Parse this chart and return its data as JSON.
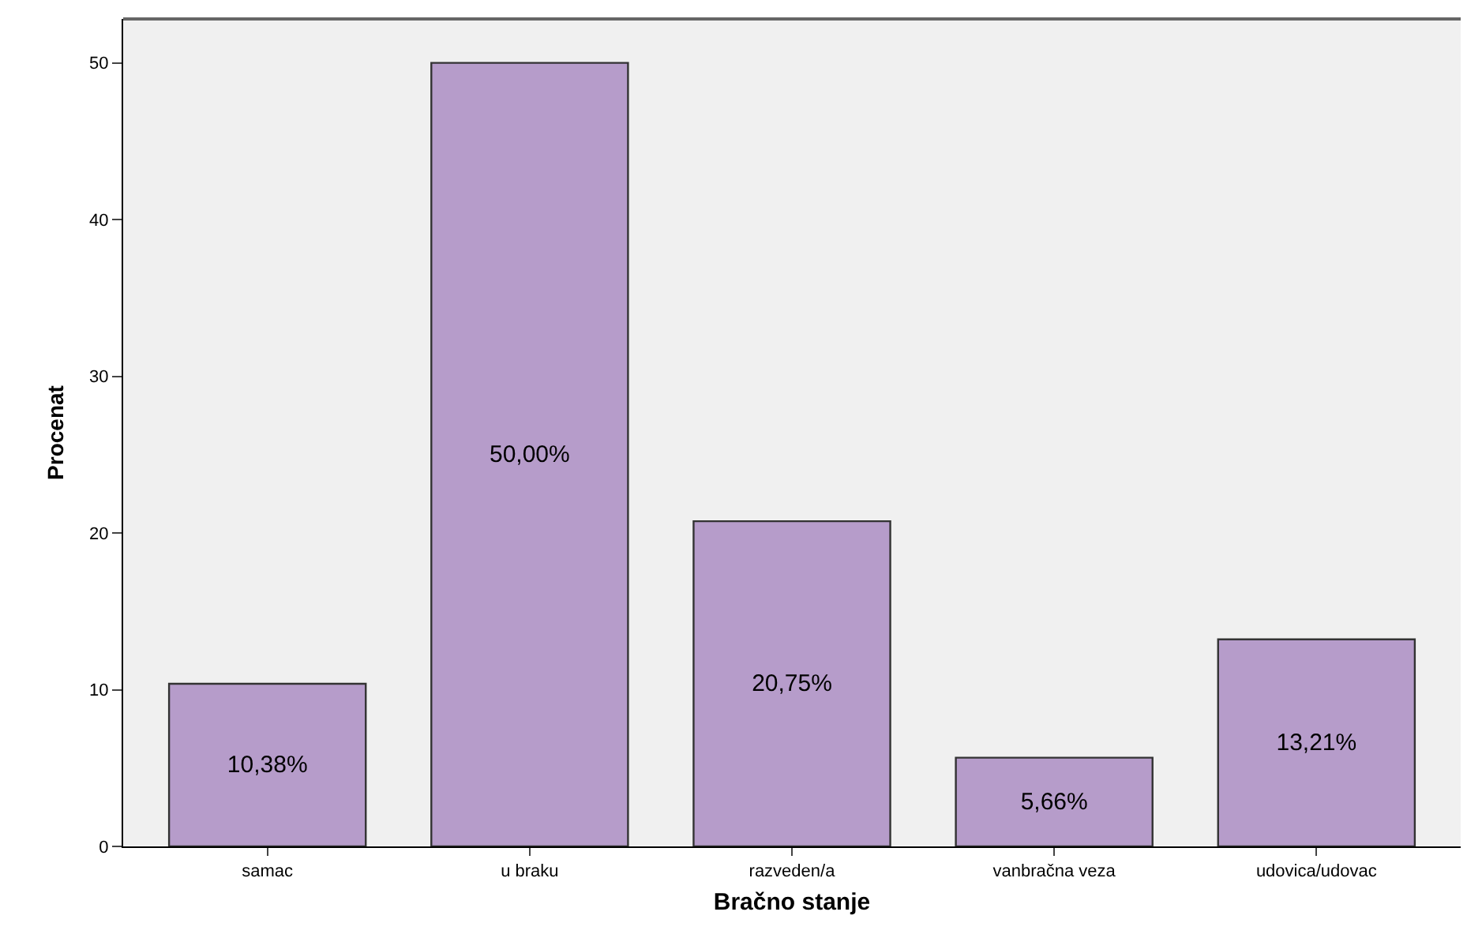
{
  "chart_data": {
    "type": "bar",
    "xlabel": "Bračno stanje",
    "ylabel": "Procenat",
    "categories": [
      "samac",
      "u braku",
      "razveden/a",
      "vanbračna veza",
      "udovica/udovac"
    ],
    "values": [
      10.38,
      50.0,
      20.75,
      5.66,
      13.21
    ],
    "value_labels": [
      "10,38%",
      "50,00%",
      "20,75%",
      "5,66%",
      "13,21%"
    ],
    "color": "#b69cca",
    "ylim": [
      0,
      52.8
    ],
    "yticks": [
      0,
      10,
      20,
      30,
      40,
      50
    ],
    "grid": false
  }
}
